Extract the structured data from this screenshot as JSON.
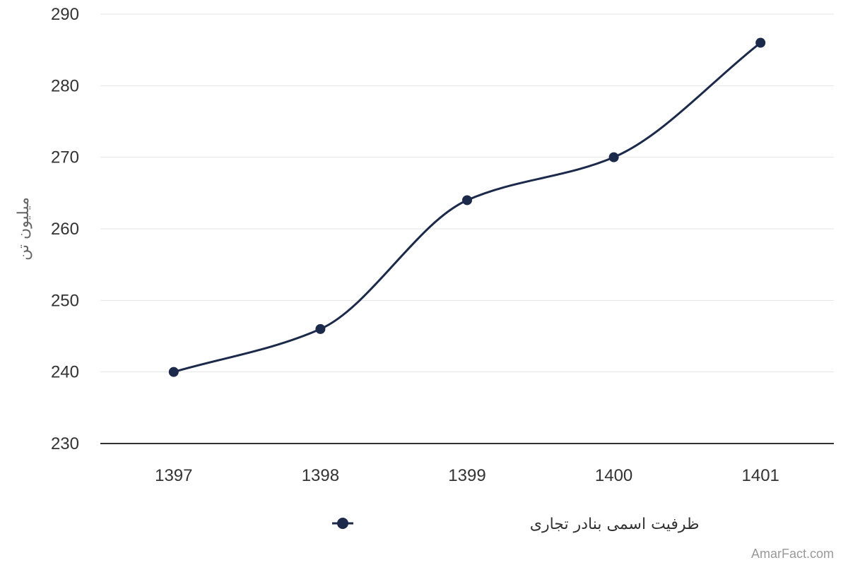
{
  "chart_data": {
    "type": "line",
    "categories": [
      "1397",
      "1398",
      "1399",
      "1400",
      "1401"
    ],
    "series": [
      {
        "name": "ظرفیت اسمی بنادر تجاری",
        "values": [
          240,
          246,
          264,
          270,
          286
        ],
        "color": "#1b2a4a"
      }
    ],
    "ylabel": "میلیون تن",
    "ylim": [
      230,
      290
    ],
    "yticks": [
      230,
      240,
      250,
      260,
      270,
      280,
      290
    ],
    "grid": true,
    "legend": "bottom-center",
    "smooth": true
  },
  "credit": "AmarFact.com",
  "colors": {
    "grid": "#e6e6e6",
    "axis": "#333333",
    "series": "#1b2a4a"
  }
}
